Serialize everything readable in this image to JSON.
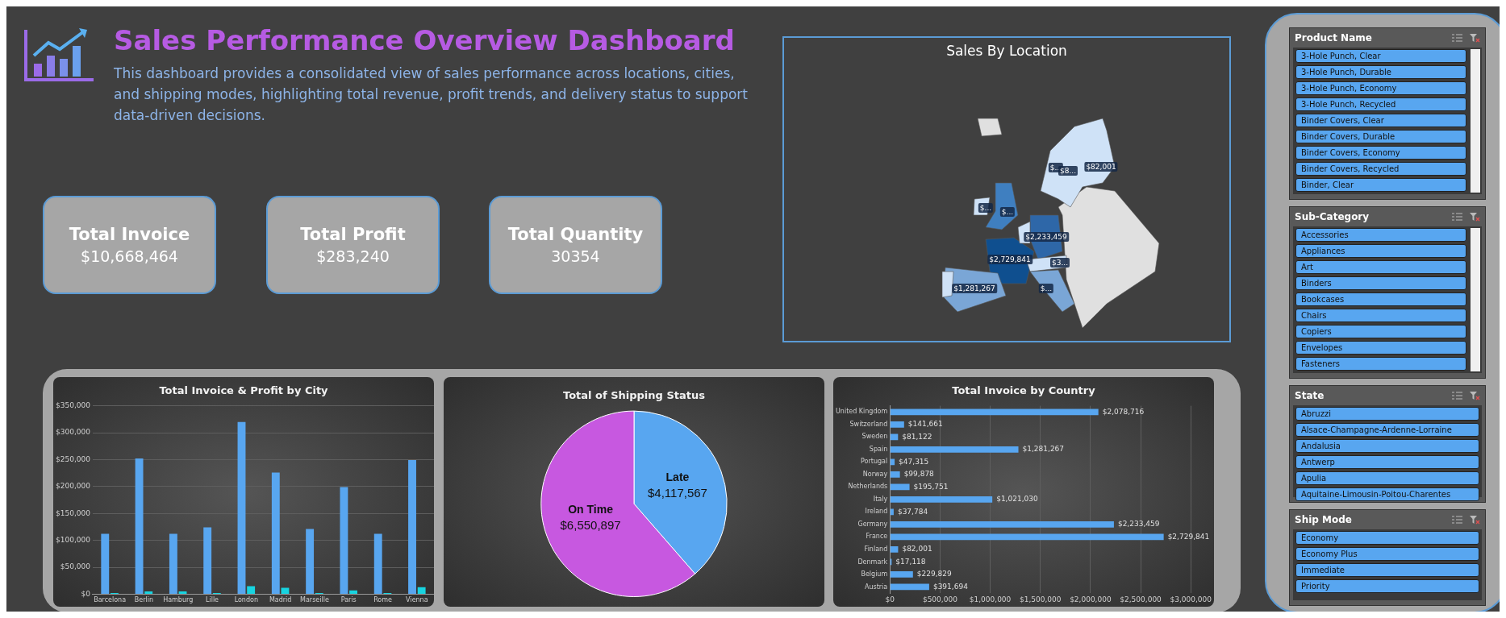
{
  "chart_data": [
    {
      "type": "other",
      "title": "Sales Performance Overview Dashboard",
      "subtitle": "This dashboard provides a consolidated view of sales performance across locations, cities, and shipping modes, highlighting total revenue, profit trends, and delivery status to support data-driven decisions."
    },
    {
      "type": "other",
      "title": "Total Invoice",
      "annotations": [
        "$10,668,464"
      ]
    },
    {
      "type": "other",
      "title": "Total Profit",
      "annotations": [
        "$283,240"
      ]
    },
    {
      "type": "other",
      "title": "Total Quantity",
      "annotations": [
        "30354"
      ]
    },
    {
      "type": "other",
      "title": "Sales By Location",
      "annotations": [
        "$...",
        "$8...",
        "$82,001",
        "$...",
        "$...",
        "$2,233,459",
        "$2,729,841",
        "$3...",
        "$1,281,267",
        "$..."
      ]
    },
    {
      "type": "bar",
      "title": "Total Invoice & Profit by City",
      "categories": [
        "Barcelona",
        "Berlin",
        "Hamburg",
        "Lille",
        "London",
        "Madrid",
        "Marseille",
        "Paris",
        "Rome",
        "Vienna"
      ],
      "series": [
        {
          "color": "#58a6f0",
          "values": [
            112000,
            252000,
            112000,
            124000,
            320000,
            226000,
            121000,
            199000,
            112000,
            249000
          ]
        },
        {
          "color": "#17d4e0",
          "values": [
            2000,
            5000,
            5000,
            2000,
            15000,
            12000,
            2000,
            7000,
            2000,
            13000
          ]
        }
      ],
      "ylim": [
        0,
        350000
      ],
      "yticks": [
        {
          "value": 0,
          "label": "$0"
        },
        {
          "value": 50000,
          "label": "$50,000"
        },
        {
          "value": 100000,
          "label": "$100,000"
        },
        {
          "value": 150000,
          "label": "$150,000"
        },
        {
          "value": 200000,
          "label": "$200,000"
        },
        {
          "value": 250000,
          "label": "$250,000"
        },
        {
          "value": 300000,
          "label": "$300,000"
        },
        {
          "value": 350000,
          "label": "$350,000"
        }
      ],
      "grid": "y"
    },
    {
      "type": "pie",
      "title": "Total of Shipping Status",
      "categories": [
        "Late",
        "On Time"
      ],
      "values": [
        4117567,
        6550897
      ],
      "colors": [
        "#58a6f0",
        "#c758e0"
      ],
      "value_labels": [
        "$4,117,567",
        "$6,550,897"
      ]
    },
    {
      "type": "bar",
      "orientation": "horizontal",
      "title": "Total Invoice by Country",
      "categories": [
        "United Kingdom",
        "Switzerland",
        "Sweden",
        "Spain",
        "Portugal",
        "Norway",
        "Netherlands",
        "Italy",
        "Ireland",
        "Germany",
        "France",
        "Finland",
        "Denmark",
        "Belgium",
        "Austria"
      ],
      "values": [
        2078716,
        141661,
        81122,
        1281267,
        47315,
        99878,
        195751,
        1021030,
        37784,
        2233459,
        2729841,
        82001,
        17118,
        229829,
        391694
      ],
      "color": "#58a6f0",
      "value_labels": [
        "$2,078,716",
        "$141,661",
        "$81,122",
        "$1,281,267",
        "$47,315",
        "$99,878",
        "$195,751",
        "$1,021,030",
        "$37,784",
        "$2,233,459",
        "$2,729,841",
        "$82,001",
        "$17,118",
        "$229,829",
        "$391,694"
      ],
      "xlim": [
        0,
        3000000
      ],
      "xticks": [
        {
          "value": 0,
          "label": "$0"
        },
        {
          "value": 500000,
          "label": "$500,000"
        },
        {
          "value": 1000000,
          "label": "$1,000,000"
        },
        {
          "value": 1500000,
          "label": "$1,500,000"
        },
        {
          "value": 2000000,
          "label": "$2,000,000"
        },
        {
          "value": 2500000,
          "label": "$2,500,000"
        },
        {
          "value": 3000000,
          "label": "$3,000,000"
        }
      ],
      "grid": "x"
    },
    {
      "type": "other",
      "title": "Product Name",
      "annotations": [
        "3-Hole Punch, Clear",
        "3-Hole Punch, Durable",
        "3-Hole Punch, Economy",
        "3-Hole Punch, Recycled",
        "Binder Covers, Clear",
        "Binder Covers, Durable",
        "Binder Covers, Economy",
        "Binder Covers, Recycled",
        "Binder, Clear"
      ]
    },
    {
      "type": "other",
      "title": "Sub-Category",
      "annotations": [
        "Accessories",
        "Appliances",
        "Art",
        "Binders",
        "Bookcases",
        "Chairs",
        "Copiers",
        "Envelopes",
        "Fasteners"
      ]
    },
    {
      "type": "other",
      "title": "State",
      "annotations": [
        "Abruzzi",
        "Alsace-Champagne-Ardenne-Lorraine",
        "Andalusia",
        "Antwerp",
        "Apulia",
        "Aquitaine-Limousin-Poitou-Charentes"
      ]
    },
    {
      "type": "other",
      "title": "Ship Mode",
      "annotations": [
        "Economy",
        "Economy Plus",
        "Immediate",
        "Priority"
      ]
    }
  ]
}
